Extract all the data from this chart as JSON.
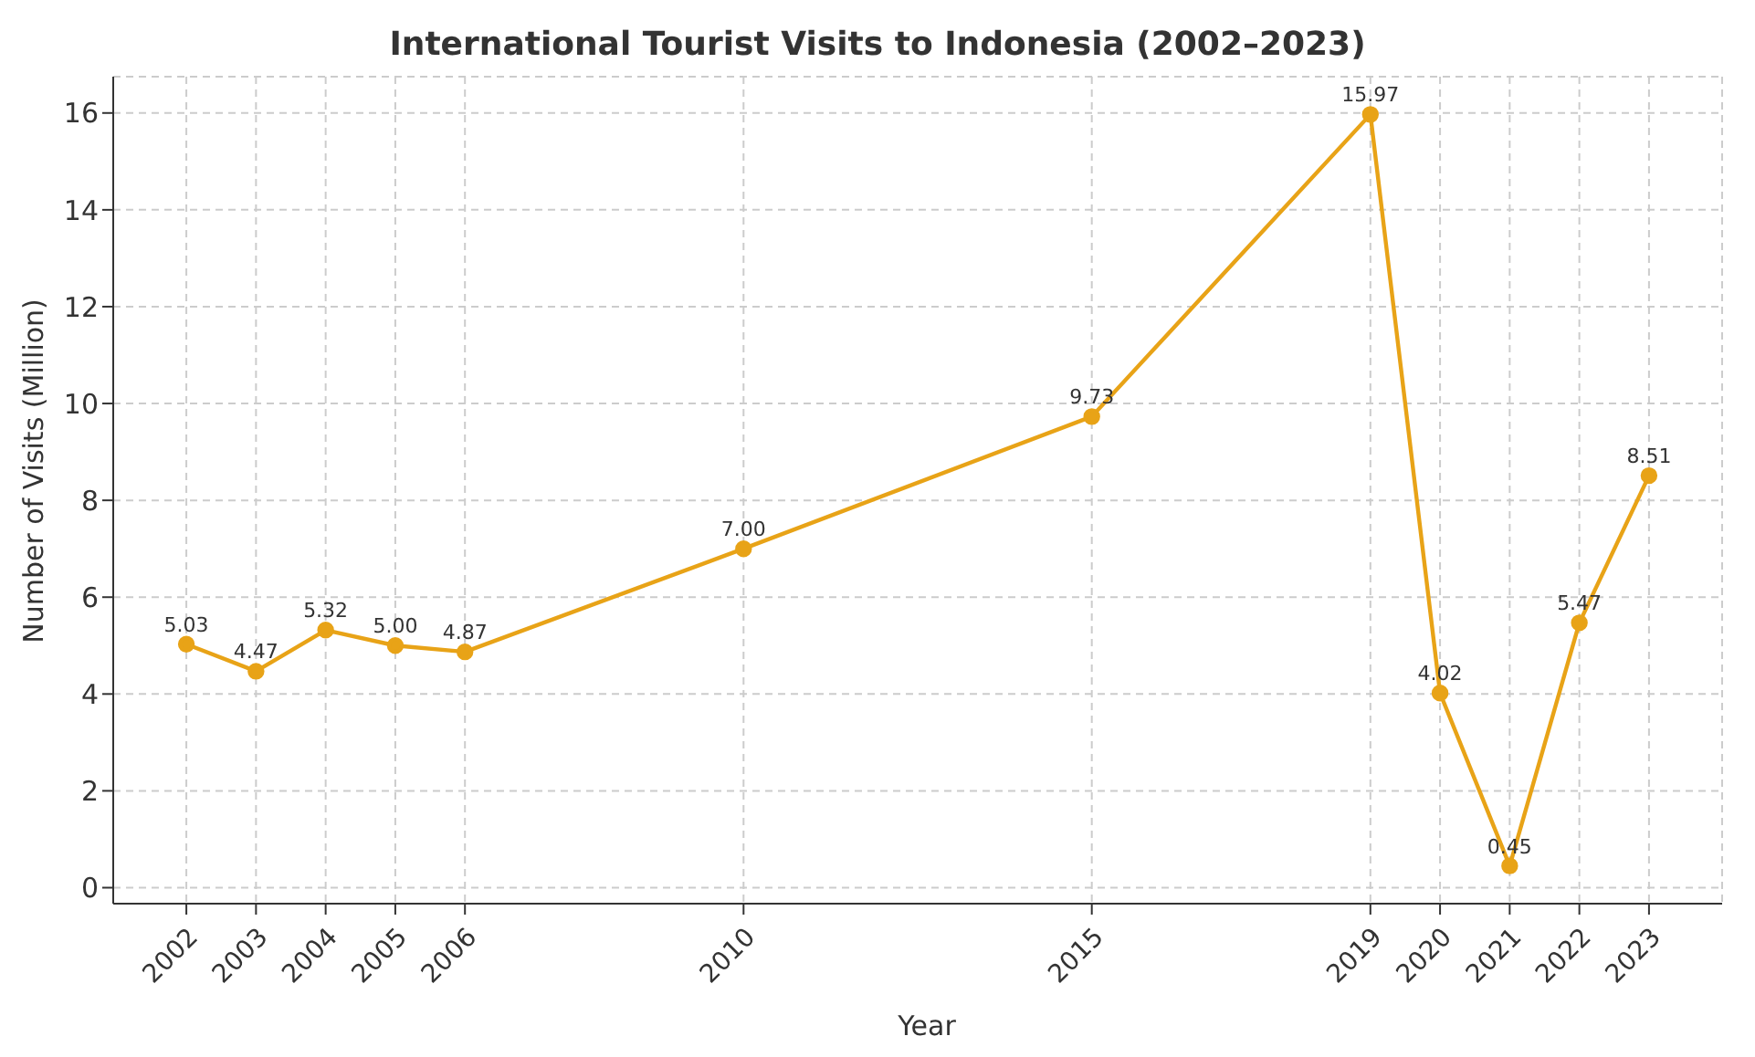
{
  "chart_data": {
    "type": "line",
    "title": "International Tourist Visits to Indonesia (2002–2023)",
    "xlabel": "Year",
    "ylabel": "Number of Visits (Million)",
    "x": [
      2002,
      2003,
      2004,
      2005,
      2006,
      2010,
      2015,
      2019,
      2020,
      2021,
      2022,
      2023
    ],
    "series": [
      {
        "color": "#e8a317",
        "values": [
          5.03,
          4.47,
          5.32,
          5.0,
          4.87,
          7.0,
          9.73,
          15.97,
          4.02,
          0.45,
          5.47,
          8.51
        ],
        "value_labels": [
          "5.03",
          "4.47",
          "5.32",
          "5.00",
          "4.87",
          "7.00",
          "9.73",
          "15.97",
          "4.02",
          "0.45",
          "5.47",
          "8.51"
        ]
      }
    ],
    "xlim": [
      2000.95,
      2024.05
    ],
    "xticks": [
      2002,
      2003,
      2004,
      2005,
      2006,
      2010,
      2015,
      2019,
      2020,
      2021,
      2022,
      2023
    ],
    "ylim": [
      -0.33,
      16.75
    ],
    "yticks": [
      0,
      2,
      4,
      6,
      8,
      10,
      12,
      14,
      16
    ],
    "grid": true,
    "marker": "circle",
    "line_style": "solid"
  }
}
